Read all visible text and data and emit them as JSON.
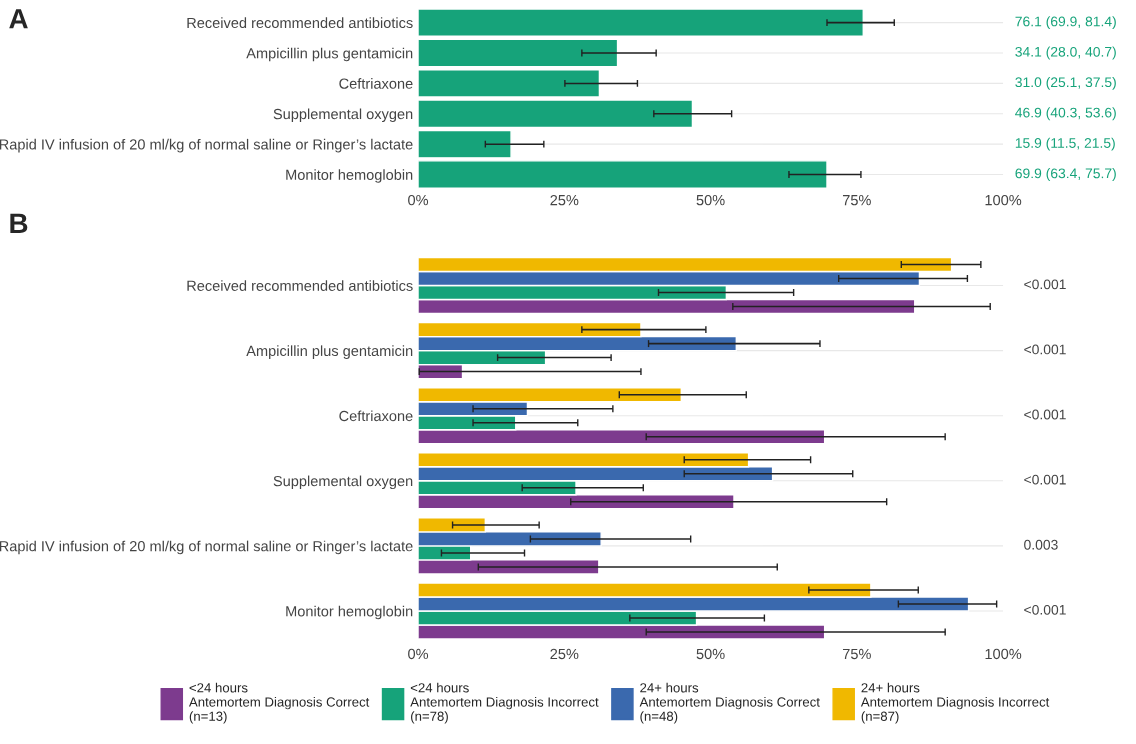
{
  "chart_data": [
    {
      "type": "bar",
      "title": "A",
      "orientation": "horizontal",
      "categories": [
        "Received recommended antibiotics",
        "Ampicillin plus gentamicin",
        "Ceftriaxone",
        "Supplemental oxygen",
        "Rapid IV infusion of 20 ml/kg of normal saline or Ringer’s lactate",
        "Monitor hemoglobin"
      ],
      "series": [
        {
          "color": "#16a37a",
          "values": [
            76.1,
            34.1,
            31.0,
            46.9,
            15.9,
            69.9
          ],
          "errors": [
            [
              69.9,
              81.4
            ],
            [
              28.0,
              40.7
            ],
            [
              25.1,
              37.5
            ],
            [
              40.3,
              53.6
            ],
            [
              11.5,
              21.5
            ],
            [
              63.4,
              75.7
            ]
          ],
          "value_labels": [
            "76.1 (69.9, 81.4)",
            "34.1 (28.0, 40.7)",
            "31.0 (25.1, 37.5)",
            "46.9 (40.3, 53.6)",
            "15.9 (11.5, 21.5)",
            "69.9 (63.4, 75.7)"
          ]
        }
      ],
      "xlim": [
        0,
        100
      ],
      "xticks": [
        {
          "value": 0,
          "label": "0%"
        },
        {
          "value": 25,
          "label": "25%"
        },
        {
          "value": 50,
          "label": "50%"
        },
        {
          "value": 75,
          "label": "75%"
        },
        {
          "value": 100,
          "label": "100%"
        }
      ],
      "grid": "y",
      "legend": false
    },
    {
      "type": "bar",
      "title": "B",
      "orientation": "horizontal",
      "categories": [
        "Received recommended antibiotics",
        "Ampicillin plus gentamicin",
        "Ceftriaxone",
        "Supplemental oxygen",
        "Rapid IV infusion of 20 ml/kg of normal saline or Ringer’s lactate",
        "Monitor hemoglobin"
      ],
      "series": [
        {
          "name": "<24 hours\nAntemortem Diagnosis Correct\n(n=13)",
          "color": "#7d3b8e",
          "values": [
            84.9,
            7.6,
            69.5,
            54.0,
            30.9,
            69.5
          ],
          "errors": [
            [
              53.8,
              97.8
            ],
            [
              0.2,
              38.1
            ],
            [
              39.0,
              90.1
            ],
            [
              26.1,
              80.1
            ],
            [
              10.3,
              61.4
            ],
            [
              39.0,
              90.1
            ]
          ]
        },
        {
          "name": "<24 hours\nAntemortem Diagnosis Incorrect\n(n=78)",
          "color": "#16a37a",
          "values": [
            52.7,
            21.8,
            16.7,
            27.0,
            9.0,
            47.6
          ],
          "errors": [
            [
              41.1,
              64.2
            ],
            [
              13.6,
              33.0
            ],
            [
              9.4,
              27.3
            ],
            [
              17.8,
              38.5
            ],
            [
              4.0,
              18.2
            ],
            [
              36.2,
              59.2
            ]
          ]
        },
        {
          "name": "24+ hours\nAntemortem Diagnosis Correct\n(n=48)",
          "color": "#3a69ae",
          "values": [
            85.7,
            54.4,
            18.7,
            60.6,
            31.3,
            94.1
          ],
          "errors": [
            [
              71.9,
              93.9
            ],
            [
              39.4,
              68.7
            ],
            [
              9.4,
              33.3
            ],
            [
              45.5,
              74.3
            ],
            [
              19.2,
              46.6
            ],
            [
              82.1,
              98.9
            ]
          ]
        },
        {
          "name": "24+ hours\nAntemortem Diagnosis Incorrect\n(n=87)",
          "color": "#f0b800",
          "values": [
            91.2,
            38.1,
            45.0,
            56.5,
            11.5,
            77.4
          ],
          "errors": [
            [
              82.6,
              96.2
            ],
            [
              28.0,
              49.2
            ],
            [
              34.4,
              56.1
            ],
            [
              45.5,
              67.1
            ],
            [
              5.9,
              20.7
            ],
            [
              66.8,
              85.5
            ]
          ]
        }
      ],
      "annotations": [
        "<0.001",
        "<0.001",
        "<0.001",
        "<0.001",
        "0.003",
        "<0.001"
      ],
      "xlim": [
        0,
        100
      ],
      "xticks": [
        {
          "value": 0,
          "label": "0%"
        },
        {
          "value": 25,
          "label": "25%"
        },
        {
          "value": 50,
          "label": "50%"
        },
        {
          "value": 75,
          "label": "75%"
        },
        {
          "value": 100,
          "label": "100%"
        }
      ],
      "grid": "y",
      "legend": "bottom"
    }
  ]
}
